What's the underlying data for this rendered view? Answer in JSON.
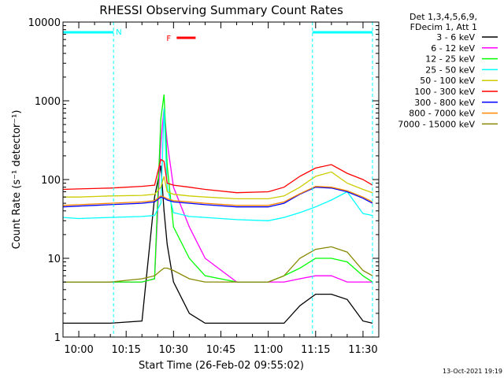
{
  "chart_data": {
    "type": "line",
    "title": "RHESSI Observing Summary Count Rates",
    "xlabel": "Start Time (26-Feb-02 09:55:02)",
    "ylabel": "Count Rate (s⁻¹ detector⁻¹)",
    "yscale": "log",
    "ylim": [
      1,
      10000
    ],
    "xlim": [
      "09:55",
      "11:35"
    ],
    "x_ticks": [
      "10:00",
      "10:15",
      "10:30",
      "10:45",
      "11:00",
      "11:15",
      "11:30"
    ],
    "y_ticks": [
      "1",
      "10",
      "100",
      "1000",
      "10000"
    ],
    "legend_header": [
      "Det 1,3,4,5,6,9,",
      "FDecim 1, Att 1"
    ],
    "legend_placement": "right",
    "footer_date": "13-Oct-2021 19:19",
    "annotations": {
      "night_label": "N",
      "flare_label": "F",
      "night_intervals": [
        [
          "09:55",
          "10:11"
        ],
        [
          "11:14",
          "11:33"
        ]
      ],
      "flare_interval": [
        "10:31",
        "10:37"
      ]
    },
    "x": [
      "09:55",
      "10:00",
      "10:10",
      "10:20",
      "10:24",
      "10:26",
      "10:27",
      "10:28",
      "10:30",
      "10:35",
      "10:40",
      "10:50",
      "11:00",
      "11:05",
      "11:10",
      "11:15",
      "11:20",
      "11:25",
      "11:30",
      "11:33"
    ],
    "series": [
      {
        "name": "3 - 6 keV",
        "color": "#000000",
        "values": [
          1.5,
          1.5,
          1.5,
          1.6,
          60,
          150,
          40,
          15,
          5,
          2,
          1.5,
          1.5,
          1.5,
          1.5,
          2.5,
          3.5,
          3.5,
          3,
          1.6,
          1.5
        ]
      },
      {
        "name": "6 - 12 keV",
        "color": "#ff00ff",
        "values": [
          5,
          5,
          5,
          5,
          5.5,
          300,
          800,
          300,
          80,
          25,
          10,
          5,
          5,
          5,
          5.5,
          6,
          6,
          5,
          5,
          5
        ]
      },
      {
        "name": "12 - 25 keV",
        "color": "#00ff00",
        "values": [
          5,
          5,
          5,
          5,
          5.5,
          600,
          1200,
          150,
          25,
          10,
          6,
          5,
          5,
          6,
          7.5,
          10,
          10,
          9,
          6,
          5
        ]
      },
      {
        "name": "25 - 50 keV",
        "color": "#00ffff",
        "values": [
          33,
          32,
          33,
          34,
          35,
          50,
          800,
          80,
          38,
          34,
          33,
          31,
          30,
          33,
          38,
          45,
          55,
          70,
          37,
          35
        ]
      },
      {
        "name": "50 - 100 keV",
        "color": "#cccc00",
        "values": [
          60,
          60,
          62,
          63,
          65,
          80,
          110,
          70,
          65,
          62,
          60,
          57,
          57,
          62,
          80,
          110,
          125,
          90,
          75,
          68
        ]
      },
      {
        "name": "100 - 300 keV",
        "color": "#ff0000",
        "values": [
          75,
          76,
          78,
          82,
          85,
          180,
          170,
          90,
          85,
          80,
          75,
          68,
          70,
          80,
          110,
          140,
          155,
          120,
          100,
          85
        ]
      },
      {
        "name": "300 - 800 keV",
        "color": "#0000ff",
        "values": [
          45,
          46,
          48,
          50,
          52,
          60,
          58,
          55,
          52,
          50,
          48,
          45,
          45,
          50,
          65,
          80,
          78,
          70,
          58,
          50
        ]
      },
      {
        "name": "800 - 7000 keV",
        "color": "#ff8800",
        "values": [
          47,
          48,
          50,
          52,
          54,
          62,
          60,
          57,
          54,
          52,
          50,
          47,
          47,
          52,
          66,
          82,
          80,
          72,
          60,
          52
        ]
      },
      {
        "name": "7000 - 15000 keV",
        "color": "#888800",
        "values": [
          5,
          5,
          5,
          5.5,
          6,
          7,
          7.5,
          7.5,
          7,
          5.5,
          5,
          5,
          5,
          6,
          10,
          13,
          14,
          12,
          7,
          6
        ]
      }
    ]
  }
}
